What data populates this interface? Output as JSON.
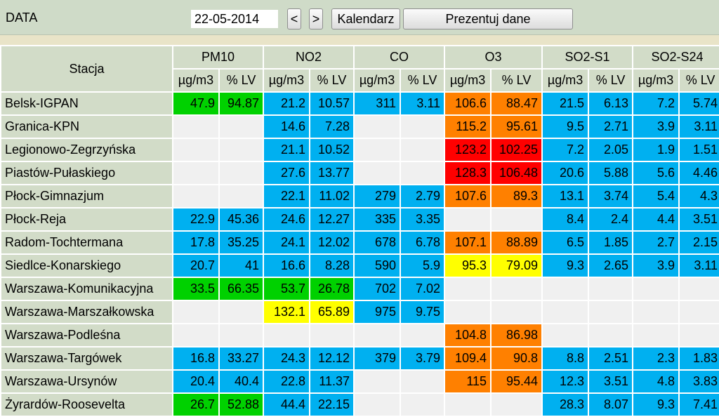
{
  "topbar": {
    "label": "DATA",
    "date_value": "22-05-2014",
    "prev_label": "<",
    "next_label": ">",
    "calendar_label": "Kalendarz",
    "show_label": "Prezentuj dane"
  },
  "table": {
    "station_header": "Stacja",
    "groups": [
      "PM10",
      "NO2",
      "CO",
      "O3",
      "SO2-S1",
      "SO2-S24"
    ],
    "unit_labels": [
      "µg/m3",
      "% LV"
    ],
    "colors": {
      "blue": "#00b0f0",
      "green": "#00d100",
      "yellow": "#ffff00",
      "orange": "#ff8000",
      "red": "#ff0000",
      "empty": "#f0f0f0"
    },
    "rows": [
      {
        "name": "Belsk-IGPAN",
        "cells": [
          [
            "47.9",
            "94.87",
            "green"
          ],
          [
            "21.2",
            "10.57",
            "blue"
          ],
          [
            "311",
            "3.11",
            "blue"
          ],
          [
            "106.6",
            "88.47",
            "orange"
          ],
          [
            "21.5",
            "6.13",
            "blue"
          ],
          [
            "7.2",
            "5.74",
            "blue"
          ]
        ]
      },
      {
        "name": "Granica-KPN",
        "cells": [
          [
            "",
            "",
            "empty"
          ],
          [
            "14.6",
            "7.28",
            "blue"
          ],
          [
            "",
            "",
            "empty"
          ],
          [
            "115.2",
            "95.61",
            "orange"
          ],
          [
            "9.5",
            "2.71",
            "blue"
          ],
          [
            "3.9",
            "3.11",
            "blue"
          ]
        ]
      },
      {
        "name": "Legionowo-Zegrzyńska",
        "cells": [
          [
            "",
            "",
            "empty"
          ],
          [
            "21.1",
            "10.52",
            "blue"
          ],
          [
            "",
            "",
            "empty"
          ],
          [
            "123.2",
            "102.25",
            "red"
          ],
          [
            "7.2",
            "2.05",
            "blue"
          ],
          [
            "1.9",
            "1.51",
            "blue"
          ]
        ]
      },
      {
        "name": "Piastów-Pułaskiego",
        "cells": [
          [
            "",
            "",
            "empty"
          ],
          [
            "27.6",
            "13.77",
            "blue"
          ],
          [
            "",
            "",
            "empty"
          ],
          [
            "128.3",
            "106.48",
            "red"
          ],
          [
            "20.6",
            "5.88",
            "blue"
          ],
          [
            "5.6",
            "4.46",
            "blue"
          ]
        ]
      },
      {
        "name": "Płock-Gimnazjum",
        "cells": [
          [
            "",
            "",
            "empty"
          ],
          [
            "22.1",
            "11.02",
            "blue"
          ],
          [
            "279",
            "2.79",
            "blue"
          ],
          [
            "107.6",
            "89.3",
            "orange"
          ],
          [
            "13.1",
            "3.74",
            "blue"
          ],
          [
            "5.4",
            "4.3",
            "blue"
          ]
        ]
      },
      {
        "name": "Płock-Reja",
        "cells": [
          [
            "22.9",
            "45.36",
            "blue"
          ],
          [
            "24.6",
            "12.27",
            "blue"
          ],
          [
            "335",
            "3.35",
            "blue"
          ],
          [
            "",
            "",
            "empty"
          ],
          [
            "8.4",
            "2.4",
            "blue"
          ],
          [
            "4.4",
            "3.51",
            "blue"
          ]
        ]
      },
      {
        "name": "Radom-Tochtermana",
        "cells": [
          [
            "17.8",
            "35.25",
            "blue"
          ],
          [
            "24.1",
            "12.02",
            "blue"
          ],
          [
            "678",
            "6.78",
            "blue"
          ],
          [
            "107.1",
            "88.89",
            "orange"
          ],
          [
            "6.5",
            "1.85",
            "blue"
          ],
          [
            "2.7",
            "2.15",
            "blue"
          ]
        ]
      },
      {
        "name": "Siedlce-Konarskiego",
        "cells": [
          [
            "20.7",
            "41",
            "blue"
          ],
          [
            "16.6",
            "8.28",
            "blue"
          ],
          [
            "590",
            "5.9",
            "blue"
          ],
          [
            "95.3",
            "79.09",
            "yellow"
          ],
          [
            "9.3",
            "2.65",
            "blue"
          ],
          [
            "3.9",
            "3.11",
            "blue"
          ]
        ]
      },
      {
        "name": "Warszawa-Komunikacyjna",
        "cells": [
          [
            "33.5",
            "66.35",
            "green"
          ],
          [
            "53.7",
            "26.78",
            "green"
          ],
          [
            "702",
            "7.02",
            "blue"
          ],
          [
            "",
            "",
            "empty"
          ],
          [
            "",
            "",
            "empty"
          ],
          [
            "",
            "",
            "empty"
          ]
        ]
      },
      {
        "name": "Warszawa-Marszałkowska",
        "cells": [
          [
            "",
            "",
            "empty"
          ],
          [
            "132.1",
            "65.89",
            "yellow"
          ],
          [
            "975",
            "9.75",
            "blue"
          ],
          [
            "",
            "",
            "empty"
          ],
          [
            "",
            "",
            "empty"
          ],
          [
            "",
            "",
            "empty"
          ]
        ]
      },
      {
        "name": "Warszawa-Podleśna",
        "cells": [
          [
            "",
            "",
            "empty"
          ],
          [
            "",
            "",
            "empty"
          ],
          [
            "",
            "",
            "empty"
          ],
          [
            "104.8",
            "86.98",
            "orange"
          ],
          [
            "",
            "",
            "empty"
          ],
          [
            "",
            "",
            "empty"
          ]
        ]
      },
      {
        "name": "Warszawa-Targówek",
        "cells": [
          [
            "16.8",
            "33.27",
            "blue"
          ],
          [
            "24.3",
            "12.12",
            "blue"
          ],
          [
            "379",
            "3.79",
            "blue"
          ],
          [
            "109.4",
            "90.8",
            "orange"
          ],
          [
            "8.8",
            "2.51",
            "blue"
          ],
          [
            "2.3",
            "1.83",
            "blue"
          ]
        ]
      },
      {
        "name": "Warszawa-Ursynów",
        "cells": [
          [
            "20.4",
            "40.4",
            "blue"
          ],
          [
            "22.8",
            "11.37",
            "blue"
          ],
          [
            "",
            "",
            "empty"
          ],
          [
            "115",
            "95.44",
            "orange"
          ],
          [
            "12.3",
            "3.51",
            "blue"
          ],
          [
            "4.8",
            "3.83",
            "blue"
          ]
        ]
      },
      {
        "name": "Żyrardów-Roosevelta",
        "cells": [
          [
            "26.7",
            "52.88",
            "green"
          ],
          [
            "44.4",
            "22.15",
            "blue"
          ],
          [
            "",
            "",
            "empty"
          ],
          [
            "",
            "",
            "empty"
          ],
          [
            "28.3",
            "8.07",
            "blue"
          ],
          [
            "9.3",
            "7.41",
            "blue"
          ]
        ]
      }
    ]
  }
}
